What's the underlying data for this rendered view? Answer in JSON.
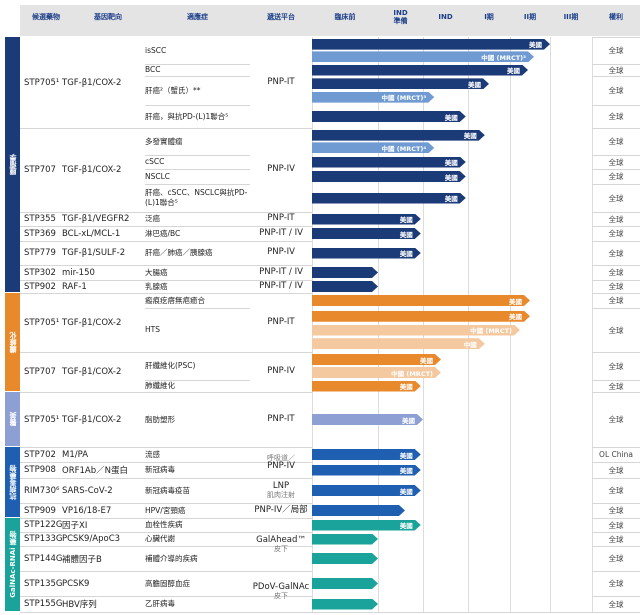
{
  "header": [
    "候選藥物",
    "基因靶向",
    "適應症",
    "遞送平台",
    "臨床前",
    "IND\n準備",
    "IND",
    "I期",
    "II期",
    "III期",
    "權利"
  ],
  "colors": {
    "navy": "#1b3a78",
    "lightblue": "#6f9bd2",
    "orange": "#e8892c",
    "lightorange": "#f4c9a0",
    "lavender": "#8e9fd4",
    "blue": "#1f5fb1",
    "teal": "#1aa39a",
    "category_oncology": "#1b3a78",
    "category_fibrosis": "#e8892c",
    "category_aesthetic": "#8e9fd4",
    "category_antiviral": "#1f5fb1",
    "category_galnac": "#1aa39a"
  },
  "chart_data": {
    "type": "table",
    "title": "",
    "stages": [
      "臨床前",
      "IND準備",
      "IND",
      "I期",
      "II期",
      "III期"
    ],
    "stage_unit": "bar end in stage units (0 = start of 臨床前, 6 = end of III期)",
    "groups": [
      {
        "category": "腫瘤學",
        "color": "category_oncology",
        "drugs": [
          {
            "drug": "STP705¹",
            "target": "TGF-β1/COX-2",
            "indications": [
              {
                "name": "isSCC",
                "rights": "全球",
                "bars": [
                  {
                    "label": "美國",
                    "end": 5.0,
                    "color": "navy"
                  },
                  {
                    "label": "中國 (MRCT)³",
                    "end": 4.6,
                    "color": "lightblue"
                  }
                ]
              },
              {
                "name": "BCC",
                "rights": "全球",
                "bars": [
                  {
                    "label": "美國",
                    "end": 4.45,
                    "color": "navy"
                  }
                ]
              },
              {
                "name": "肝癌²（蟹氏）**",
                "rights": "全球",
                "bars": [
                  {
                    "label": "美國",
                    "end": 3.5,
                    "color": "navy"
                  },
                  {
                    "label": "中國 (MRCT)³",
                    "end": 2.25,
                    "color": "lightblue"
                  }
                ]
              },
              {
                "name": "肝癌，與抗PD-(L)1聯合⁵",
                "rights": "全球",
                "bars": [
                  {
                    "label": "美國",
                    "end": 2.95,
                    "color": "navy"
                  }
                ]
              }
            ]
          },
          {
            "drug": "STP707",
            "target": "TGF-β1/COX-2",
            "indications": [
              {
                "name": "多發實體瘤",
                "rights": "全球",
                "bars": [
                  {
                    "label": "美國",
                    "end": 3.4,
                    "color": "navy"
                  },
                  {
                    "label": "中國 (MRCT)⁴",
                    "end": 2.25,
                    "color": "lightblue"
                  }
                ]
              },
              {
                "name": "cSCC",
                "rights": "全球",
                "bars": [
                  {
                    "label": "美國",
                    "end": 2.95,
                    "color": "navy"
                  }
                ]
              },
              {
                "name": "NSCLC",
                "rights": "全球",
                "bars": [
                  {
                    "label": "美國",
                    "end": 2.95,
                    "color": "navy"
                  }
                ]
              },
              {
                "name": "肝癌、cSCC、NSCLC與抗PD-(L)1聯合⁵",
                "rights": "全球",
                "bars": [
                  {
                    "label": "美國",
                    "end": 2.95,
                    "color": "navy"
                  }
                ]
              }
            ]
          },
          {
            "drug": "STP355",
            "target": "TGF-β1/VEGFR2",
            "indications": [
              {
                "name": "泛癌",
                "rights": "全球",
                "bars": [
                  {
                    "label": "美國",
                    "end": 1.95,
                    "color": "navy"
                  }
                ]
              }
            ]
          },
          {
            "drug": "STP369",
            "target": "BCL-xL/MCL-1",
            "indications": [
              {
                "name": "淋巴癌/BC",
                "rights": "全球",
                "bars": [
                  {
                    "label": "美國",
                    "end": 1.95,
                    "color": "navy"
                  }
                ]
              }
            ]
          },
          {
            "drug": "STP779",
            "target": "TGF-β1/SULF-2",
            "indications": [
              {
                "name": "肝癌／肺癌／胰腺癌",
                "rights": "全球",
                "bars": [
                  {
                    "label": "美國",
                    "end": 1.95,
                    "color": "navy"
                  }
                ]
              }
            ]
          },
          {
            "drug": "STP302",
            "target": "mir-150",
            "indications": [
              {
                "name": "大腸癌",
                "rights": "全球",
                "bars": [
                  {
                    "label": "",
                    "end": 1.0,
                    "color": "navy"
                  }
                ]
              }
            ]
          },
          {
            "drug": "STP902",
            "target": "RAF-1",
            "indications": [
              {
                "name": "乳腺癌",
                "rights": "全球",
                "bars": [
                  {
                    "label": "",
                    "end": 1.0,
                    "color": "navy"
                  }
                ]
              }
            ]
          }
        ]
      },
      {
        "category": "纖維化",
        "color": "category_fibrosis",
        "drugs": [
          {
            "drug": "STP705¹",
            "target": "TGF-β1/COX-2",
            "indications": [
              {
                "name": "瘢痕疙瘩無疤癒合",
                "rights": "全球",
                "bars": [
                  {
                    "label": "美國",
                    "end": 4.5,
                    "color": "orange"
                  }
                ]
              },
              {
                "name": "HTS",
                "rights": "全球",
                "bars": [
                  {
                    "label": "美國",
                    "end": 4.5,
                    "color": "orange"
                  },
                  {
                    "label": "中國 (MRCT)",
                    "end": 4.25,
                    "color": "lightorange"
                  },
                  {
                    "label": "中國",
                    "end": 3.4,
                    "color": "lightorange"
                  }
                ]
              }
            ]
          },
          {
            "drug": "STP707",
            "target": "TGF-β1/COX-2",
            "indications": [
              {
                "name": "肝纖維化(PSC)",
                "rights": "全球",
                "bars": [
                  {
                    "label": "美國",
                    "end": 2.4,
                    "color": "orange"
                  },
                  {
                    "label": "中國 (MRCT)",
                    "end": 2.4,
                    "color": "lightorange"
                  }
                ]
              },
              {
                "name": "肺纖維化",
                "rights": "全球",
                "bars": [
                  {
                    "label": "美國",
                    "end": 1.95,
                    "color": "orange"
                  }
                ]
              }
            ]
          }
        ]
      },
      {
        "category": "醫美",
        "color": "category_aesthetic",
        "drugs": [
          {
            "drug": "STP705¹",
            "target": "TGF-β1/COX-2",
            "indications": [
              {
                "name": "脂肪塑形",
                "rights": "全球",
                "bars": [
                  {
                    "label": "美國",
                    "end": 2.0,
                    "color": "lavender"
                  }
                ]
              }
            ]
          }
        ]
      },
      {
        "category": "抗病毒藥物",
        "color": "category_antiviral",
        "drugs": [
          {
            "drug": "STP702",
            "target": "M1/PA",
            "indications": [
              {
                "name": "流感",
                "rights": "OL China",
                "bars": [
                  {
                    "label": "美國",
                    "end": 1.95,
                    "color": "blue"
                  }
                ]
              }
            ]
          },
          {
            "drug": "STP908",
            "target": "ORF1Ab／N蛋白",
            "indications": [
              {
                "name": "新冠病毒",
                "rights": "全球",
                "bars": [
                  {
                    "label": "美國",
                    "end": 1.95,
                    "color": "blue"
                  }
                ]
              }
            ]
          },
          {
            "drug": "RIM730⁶",
            "target": "SARS-CoV-2",
            "indications": [
              {
                "name": "新冠病毒疫苗",
                "rights": "全球",
                "bars": [
                  {
                    "label": "美國",
                    "end": 1.95,
                    "color": "blue"
                  }
                ]
              }
            ]
          },
          {
            "drug": "STP909",
            "target": "VP16/18-E7",
            "indications": [
              {
                "name": "HPV/宮頸癌",
                "rights": "全球",
                "bars": [
                  {
                    "label": "",
                    "end": 1.6,
                    "color": "blue"
                  }
                ]
              }
            ]
          }
        ]
      },
      {
        "category": "GalNAc-RNAi 藥物",
        "color": "category_galnac",
        "drugs": [
          {
            "drug": "STP122G",
            "target": "因子XI",
            "indications": [
              {
                "name": "血栓性疾病",
                "rights": "全球",
                "bars": [
                  {
                    "label": "美國",
                    "end": 1.95,
                    "color": "teal"
                  }
                ]
              }
            ]
          },
          {
            "drug": "STP133G",
            "target": "PCSK9/ApoC3",
            "indications": [
              {
                "name": "心臟代謝",
                "rights": "全球",
                "bars": [
                  {
                    "label": "",
                    "end": 1.0,
                    "color": "teal"
                  }
                ]
              }
            ]
          },
          {
            "drug": "STP144G",
            "target": "補體因子B",
            "indications": [
              {
                "name": "補體介導的疾病",
                "rights": "全球",
                "bars": [
                  {
                    "label": "",
                    "end": 1.0,
                    "color": "teal"
                  }
                ]
              }
            ]
          },
          {
            "drug": "STP135G",
            "target": "PCSK9",
            "indications": [
              {
                "name": "高膽固醇血症",
                "rights": "全球",
                "bars": [
                  {
                    "label": "",
                    "end": 1.0,
                    "color": "teal"
                  }
                ]
              }
            ]
          },
          {
            "drug": "STP155G",
            "target": "HBV序列",
            "indications": [
              {
                "name": "乙肝病毒",
                "rights": "全球",
                "bars": [
                  {
                    "label": "",
                    "end": 1.0,
                    "color": "teal"
                  }
                ]
              }
            ]
          }
        ]
      }
    ],
    "platforms": [
      {
        "label": "PNP-IT",
        "sub": "",
        "span": 4
      },
      {
        "label": "PNP-IV",
        "sub": "",
        "span": 4
      },
      {
        "label": "PNP-IT",
        "sub": "",
        "span": 1
      },
      {
        "label": "PNP-IT / IV",
        "sub": "",
        "span": 1
      },
      {
        "label": "PNP-IV",
        "sub": "",
        "span": 1
      },
      {
        "label": "PNP-IT / IV",
        "sub": "",
        "span": 1
      },
      {
        "label": "PNP-IT / IV",
        "sub": "",
        "span": 1
      },
      {
        "label": "PNP-IT",
        "sub": "",
        "span": 2
      },
      {
        "label": "PNP-IV",
        "sub": "",
        "span": 2
      },
      {
        "label": "PNP-IT",
        "sub": "",
        "span": 1
      },
      {
        "label": "呼吸道／",
        "sub2": "PNP-IV",
        "span": 2
      },
      {
        "label": "LNP",
        "sub": "肌肉注射",
        "span": 1
      },
      {
        "label": "PNP-IV／局部",
        "sub": "",
        "span": 1
      },
      {
        "label": "GalAhead™",
        "sub": "皮下",
        "span": 3
      },
      {
        "label": "PDoV-GalNAc",
        "sub": "皮下",
        "span": 2
      }
    ]
  }
}
